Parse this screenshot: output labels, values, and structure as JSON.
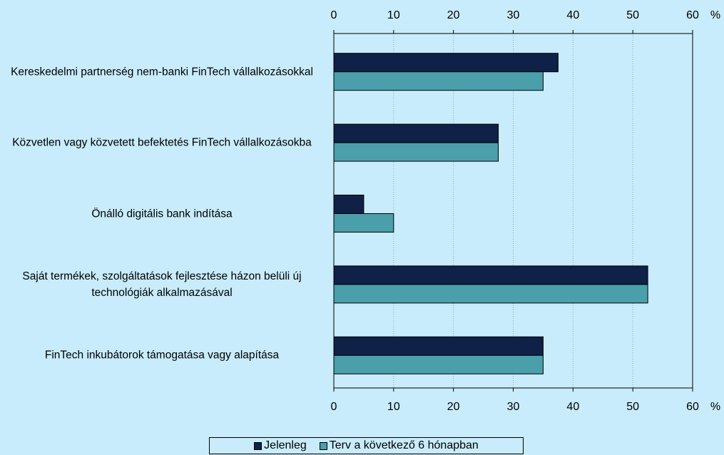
{
  "chart_data": {
    "type": "hbar",
    "categories": [
      "Kereskedelmi partnerség nem-banki FinTech vállalkozásokkal",
      "Közvetlen vagy közvetett befektetés FinTech vállalkozásokba",
      "Önálló digitális bank indítása",
      "Saját termékek, szolgáltatások fejlesztése házon belüli új technológiák alkalmazásával",
      "FinTech inkubátorok támogatása vagy alapítása"
    ],
    "series": [
      {
        "name": "Jelenleg",
        "color": "#0f2147",
        "values": [
          37.5,
          27.5,
          5,
          52.5,
          35
        ]
      },
      {
        "name": "Terv a következő 6 hónapban",
        "color": "#4a9fab",
        "values": [
          35,
          27.5,
          10,
          52.5,
          35
        ]
      }
    ],
    "xlim": [
      0,
      60
    ],
    "xticks": [
      0,
      10,
      20,
      30,
      40,
      50,
      60
    ],
    "x_unit": "%",
    "grid": true,
    "legend": "bottom"
  }
}
